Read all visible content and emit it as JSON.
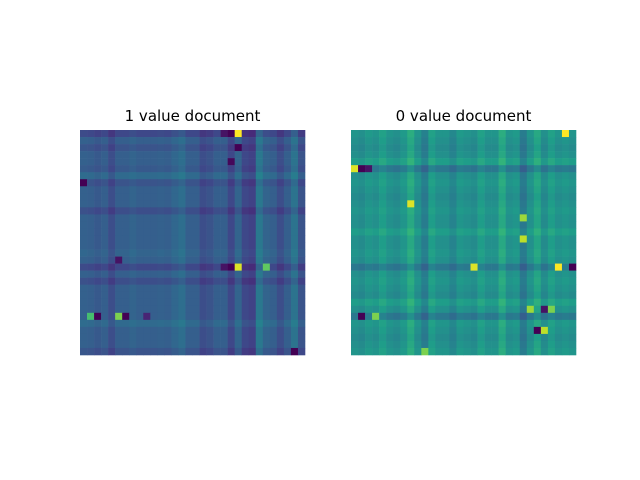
{
  "chart_data": [
    {
      "type": "heatmap",
      "title": "1 value document",
      "rows": 32,
      "cols": 32,
      "colormap": "viridis",
      "axes_visible": false,
      "value_range": [
        0,
        1
      ],
      "palette": [
        "#440154",
        "#482878",
        "#3e4989",
        "#31688e",
        "#26828e",
        "#1f9e89",
        "#35b779",
        "#6ece58",
        "#b5de2b",
        "#fde725"
      ],
      "base_value": 0.3,
      "column_pattern": [
        0.31,
        0.3,
        0.28,
        0.3,
        0.24,
        0.3,
        0.3,
        0.32,
        0.3,
        0.3,
        0.3,
        0.31,
        0.3,
        0.33,
        0.36,
        0.3,
        0.3,
        0.24,
        0.26,
        0.3,
        0.3,
        0.22,
        0.32,
        0.22,
        0.2,
        0.4,
        0.32,
        0.3,
        0.24,
        0.3,
        0.38,
        0.26
      ],
      "row_pattern": [
        0.22,
        0.3,
        0.26,
        0.3,
        0.3,
        0.28,
        0.34,
        0.26,
        0.3,
        0.3,
        0.3,
        0.24,
        0.3,
        0.3,
        0.3,
        0.3,
        0.3,
        0.32,
        0.3,
        0.22,
        0.3,
        0.24,
        0.3,
        0.3,
        0.3,
        0.3,
        0.3,
        0.34,
        0.3,
        0.3,
        0.3,
        0.26
      ],
      "highlights": [
        {
          "row": 0,
          "col": 22,
          "value": 1.0
        },
        {
          "row": 0,
          "col": 21,
          "value": 0.0
        },
        {
          "row": 0,
          "col": 20,
          "value": 0.05
        },
        {
          "row": 2,
          "col": 22,
          "value": 0.0
        },
        {
          "row": 4,
          "col": 21,
          "value": 0.02
        },
        {
          "row": 19,
          "col": 22,
          "value": 0.95
        },
        {
          "row": 19,
          "col": 21,
          "value": 0.0
        },
        {
          "row": 19,
          "col": 20,
          "value": 0.05
        },
        {
          "row": 19,
          "col": 26,
          "value": 0.75
        },
        {
          "row": 26,
          "col": 5,
          "value": 0.8
        },
        {
          "row": 26,
          "col": 6,
          "value": 0.0
        },
        {
          "row": 26,
          "col": 2,
          "value": 0.0
        },
        {
          "row": 26,
          "col": 1,
          "value": 0.7
        },
        {
          "row": 26,
          "col": 9,
          "value": 0.1
        },
        {
          "row": 18,
          "col": 5,
          "value": 0.05
        },
        {
          "row": 7,
          "col": 0,
          "value": 0.0
        },
        {
          "row": 31,
          "col": 30,
          "value": 0.0
        }
      ]
    },
    {
      "type": "heatmap",
      "title": "0 value document",
      "rows": 32,
      "cols": 32,
      "colormap": "viridis",
      "axes_visible": false,
      "value_range": [
        0,
        1
      ],
      "palette": [
        "#440154",
        "#482878",
        "#3e4989",
        "#31688e",
        "#26828e",
        "#1f9e89",
        "#35b779",
        "#6ece58",
        "#b5de2b",
        "#fde725"
      ],
      "base_value": 0.5,
      "column_pattern": [
        0.5,
        0.48,
        0.52,
        0.5,
        0.55,
        0.5,
        0.48,
        0.52,
        0.6,
        0.5,
        0.42,
        0.55,
        0.5,
        0.5,
        0.45,
        0.52,
        0.5,
        0.48,
        0.55,
        0.5,
        0.5,
        0.6,
        0.5,
        0.52,
        0.4,
        0.5,
        0.58,
        0.48,
        0.55,
        0.5,
        0.52,
        0.5
      ],
      "row_pattern": [
        0.52,
        0.5,
        0.48,
        0.5,
        0.55,
        0.4,
        0.5,
        0.52,
        0.5,
        0.48,
        0.5,
        0.52,
        0.5,
        0.5,
        0.55,
        0.5,
        0.5,
        0.52,
        0.5,
        0.4,
        0.5,
        0.52,
        0.5,
        0.48,
        0.55,
        0.5,
        0.4,
        0.52,
        0.5,
        0.48,
        0.5,
        0.52
      ],
      "highlights": [
        {
          "row": 0,
          "col": 30,
          "value": 1.0
        },
        {
          "row": 5,
          "col": 0,
          "value": 0.95
        },
        {
          "row": 5,
          "col": 1,
          "value": 0.0
        },
        {
          "row": 5,
          "col": 2,
          "value": 0.05
        },
        {
          "row": 10,
          "col": 8,
          "value": 0.95
        },
        {
          "row": 19,
          "col": 17,
          "value": 0.95
        },
        {
          "row": 19,
          "col": 29,
          "value": 1.0
        },
        {
          "row": 19,
          "col": 31,
          "value": 0.0
        },
        {
          "row": 26,
          "col": 1,
          "value": 0.0
        },
        {
          "row": 26,
          "col": 3,
          "value": 0.8
        },
        {
          "row": 25,
          "col": 25,
          "value": 0.85
        },
        {
          "row": 25,
          "col": 27,
          "value": 0.05
        },
        {
          "row": 25,
          "col": 28,
          "value": 0.8
        },
        {
          "row": 28,
          "col": 26,
          "value": 0.0
        },
        {
          "row": 28,
          "col": 27,
          "value": 0.9
        },
        {
          "row": 12,
          "col": 24,
          "value": 0.85
        },
        {
          "row": 15,
          "col": 24,
          "value": 0.9
        },
        {
          "row": 31,
          "col": 10,
          "value": 0.8
        }
      ]
    }
  ]
}
